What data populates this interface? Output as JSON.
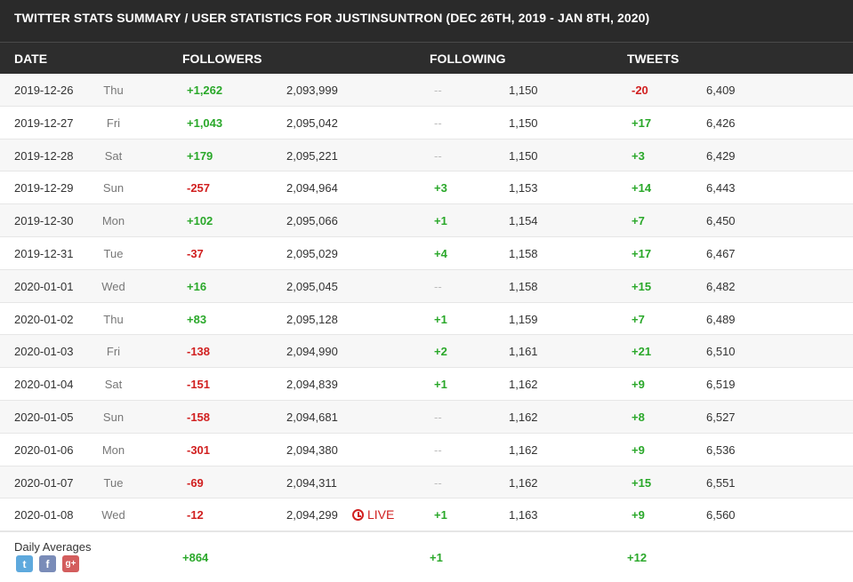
{
  "title": "TWITTER STATS SUMMARY / USER STATISTICS FOR JUSTINSUNTRON (DEC 26TH, 2019 - JAN 8TH, 2020)",
  "headers": {
    "date": "DATE",
    "followers": "FOLLOWERS",
    "following": "FOLLOWING",
    "tweets": "TWEETS"
  },
  "rows": [
    {
      "date": "2019-12-26",
      "day": "Thu",
      "followers_delta": "+1,262",
      "followers": "2,093,999",
      "following_delta": "--",
      "following": "1,150",
      "tweets_delta": "-20",
      "tweets": "6,409"
    },
    {
      "date": "2019-12-27",
      "day": "Fri",
      "followers_delta": "+1,043",
      "followers": "2,095,042",
      "following_delta": "--",
      "following": "1,150",
      "tweets_delta": "+17",
      "tweets": "6,426"
    },
    {
      "date": "2019-12-28",
      "day": "Sat",
      "followers_delta": "+179",
      "followers": "2,095,221",
      "following_delta": "--",
      "following": "1,150",
      "tweets_delta": "+3",
      "tweets": "6,429"
    },
    {
      "date": "2019-12-29",
      "day": "Sun",
      "followers_delta": "-257",
      "followers": "2,094,964",
      "following_delta": "+3",
      "following": "1,153",
      "tweets_delta": "+14",
      "tweets": "6,443"
    },
    {
      "date": "2019-12-30",
      "day": "Mon",
      "followers_delta": "+102",
      "followers": "2,095,066",
      "following_delta": "+1",
      "following": "1,154",
      "tweets_delta": "+7",
      "tweets": "6,450"
    },
    {
      "date": "2019-12-31",
      "day": "Tue",
      "followers_delta": "-37",
      "followers": "2,095,029",
      "following_delta": "+4",
      "following": "1,158",
      "tweets_delta": "+17",
      "tweets": "6,467"
    },
    {
      "date": "2020-01-01",
      "day": "Wed",
      "followers_delta": "+16",
      "followers": "2,095,045",
      "following_delta": "--",
      "following": "1,158",
      "tweets_delta": "+15",
      "tweets": "6,482"
    },
    {
      "date": "2020-01-02",
      "day": "Thu",
      "followers_delta": "+83",
      "followers": "2,095,128",
      "following_delta": "+1",
      "following": "1,159",
      "tweets_delta": "+7",
      "tweets": "6,489"
    },
    {
      "date": "2020-01-03",
      "day": "Fri",
      "followers_delta": "-138",
      "followers": "2,094,990",
      "following_delta": "+2",
      "following": "1,161",
      "tweets_delta": "+21",
      "tweets": "6,510"
    },
    {
      "date": "2020-01-04",
      "day": "Sat",
      "followers_delta": "-151",
      "followers": "2,094,839",
      "following_delta": "+1",
      "following": "1,162",
      "tweets_delta": "+9",
      "tweets": "6,519"
    },
    {
      "date": "2020-01-05",
      "day": "Sun",
      "followers_delta": "-158",
      "followers": "2,094,681",
      "following_delta": "--",
      "following": "1,162",
      "tweets_delta": "+8",
      "tweets": "6,527"
    },
    {
      "date": "2020-01-06",
      "day": "Mon",
      "followers_delta": "-301",
      "followers": "2,094,380",
      "following_delta": "--",
      "following": "1,162",
      "tweets_delta": "+9",
      "tweets": "6,536"
    },
    {
      "date": "2020-01-07",
      "day": "Tue",
      "followers_delta": "-69",
      "followers": "2,094,311",
      "following_delta": "--",
      "following": "1,162",
      "tweets_delta": "+15",
      "tweets": "6,551"
    },
    {
      "date": "2020-01-08",
      "day": "Wed",
      "followers_delta": "-12",
      "followers": "2,094,299",
      "live": "LIVE",
      "following_delta": "+1",
      "following": "1,163",
      "tweets_delta": "+9",
      "tweets": "6,560"
    }
  ],
  "footer": {
    "label": "Daily Averages",
    "followers_avg": "+864",
    "following_avg": "+1",
    "tweets_avg": "+12",
    "share_icons": [
      "twitter-icon",
      "facebook-icon",
      "google-plus-icon"
    ]
  },
  "colors": {
    "positive": "#2aa82a",
    "negative": "#d12020",
    "header_bg": "#2a2a2a",
    "live": "#d12020"
  }
}
